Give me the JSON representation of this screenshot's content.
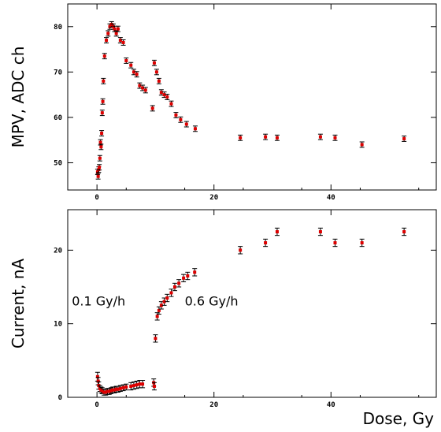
{
  "chart_data": [
    {
      "type": "scatter",
      "title": "",
      "xlabel": "",
      "ylabel": "MPV, ADC ch",
      "xlim": [
        -5,
        58
      ],
      "ylim": [
        44,
        85
      ],
      "xticks": [
        0,
        20,
        40
      ],
      "yticks": [
        50,
        60,
        70,
        80
      ],
      "grid": false,
      "marker_color": "#dd0000",
      "errorbar_color": "#000000",
      "series": [
        {
          "x": [
            0.1,
            0.2,
            0.3,
            0.4,
            0.5,
            0.6,
            0.7,
            0.8,
            0.9,
            1.0,
            1.1,
            1.3,
            1.6,
            1.9,
            2.2,
            2.5,
            2.8,
            3.0,
            3.3,
            3.6,
            4.0,
            4.5,
            5.0,
            5.8,
            6.3,
            6.8,
            7.3,
            7.8,
            8.3,
            9.5,
            9.8,
            10.2,
            10.6,
            11.0,
            11.5,
            12.0,
            12.7,
            13.5,
            14.3,
            15.3,
            16.8,
            24.5,
            28.8,
            30.8,
            38.2,
            40.7,
            45.3,
            52.5
          ],
          "y": [
            48.0,
            47.0,
            48.5,
            49.0,
            51.0,
            54.5,
            53.5,
            56.5,
            61.0,
            63.5,
            68.0,
            73.5,
            77.0,
            78.5,
            80.0,
            80.5,
            80.0,
            79.5,
            78.5,
            79.5,
            77.0,
            76.5,
            72.5,
            71.5,
            70.0,
            69.5,
            67.0,
            66.5,
            66.0,
            62.0,
            72.0,
            70.0,
            68.0,
            65.5,
            65.0,
            64.5,
            63.0,
            60.5,
            59.5,
            58.5,
            57.5,
            55.5,
            55.7,
            55.5,
            55.7,
            55.5,
            54.0,
            55.3
          ],
          "yerr": [
            0.6,
            0.6,
            0.6,
            0.6,
            0.6,
            0.6,
            0.6,
            0.6,
            0.6,
            0.6,
            0.6,
            0.6,
            0.6,
            0.6,
            0.6,
            0.6,
            0.6,
            0.6,
            0.6,
            0.6,
            0.6,
            0.6,
            0.6,
            0.6,
            0.6,
            0.6,
            0.6,
            0.6,
            0.6,
            0.6,
            0.6,
            0.6,
            0.6,
            0.6,
            0.6,
            0.6,
            0.6,
            0.6,
            0.6,
            0.6,
            0.6,
            0.6,
            0.6,
            0.6,
            0.6,
            0.6,
            0.6,
            0.6
          ]
        }
      ]
    },
    {
      "type": "scatter",
      "title": "",
      "xlabel": "Dose, Gy",
      "ylabel": "Current, nA",
      "xlim": [
        -5,
        58
      ],
      "ylim": [
        0,
        25.5
      ],
      "xticks": [
        0,
        20,
        40
      ],
      "yticks": [
        0,
        10,
        20
      ],
      "grid": false,
      "marker_color": "#dd0000",
      "errorbar_color": "#000000",
      "annotations": [
        {
          "text": "0.1 Gy/h",
          "x": -4.3,
          "y": 13.0
        },
        {
          "text": "0.6 Gy/h",
          "x": 15.0,
          "y": 13.0
        }
      ],
      "series": [
        {
          "x": [
            0.1,
            0.2,
            0.3,
            0.5,
            0.7,
            0.9,
            1.2,
            1.5,
            1.8,
            2.1,
            2.4,
            2.7,
            3.0,
            3.3,
            3.6,
            4.0,
            4.5,
            5.0,
            5.8,
            6.3,
            6.8,
            7.3,
            7.8,
            9.7,
            9.8,
            10.0,
            10.3,
            10.6,
            11.0,
            11.5,
            12.0,
            12.7,
            13.3,
            14.0,
            14.8,
            15.5,
            16.7,
            24.5,
            28.8,
            30.8,
            38.2,
            40.7,
            45.3,
            52.5
          ],
          "y": [
            2.8,
            2.2,
            1.6,
            1.2,
            1.0,
            0.9,
            0.7,
            0.7,
            0.8,
            0.8,
            0.9,
            1.0,
            1.0,
            1.1,
            1.1,
            1.2,
            1.3,
            1.4,
            1.5,
            1.6,
            1.7,
            1.8,
            1.8,
            2.0,
            1.5,
            8.0,
            11.0,
            11.8,
            12.5,
            13.0,
            13.5,
            14.2,
            15.0,
            15.5,
            16.2,
            16.5,
            17.0,
            20.0,
            21.0,
            22.5,
            22.5,
            21.0,
            21.0,
            22.5
          ],
          "yerr": [
            0.6,
            0.5,
            0.5,
            0.4,
            0.4,
            0.4,
            0.4,
            0.4,
            0.4,
            0.4,
            0.4,
            0.4,
            0.4,
            0.4,
            0.4,
            0.4,
            0.4,
            0.4,
            0.5,
            0.5,
            0.5,
            0.5,
            0.5,
            0.5,
            0.5,
            0.5,
            0.5,
            0.5,
            0.5,
            0.5,
            0.5,
            0.5,
            0.5,
            0.5,
            0.5,
            0.5,
            0.5,
            0.5,
            0.5,
            0.5,
            0.5,
            0.5,
            0.5,
            0.5
          ]
        }
      ]
    }
  ]
}
